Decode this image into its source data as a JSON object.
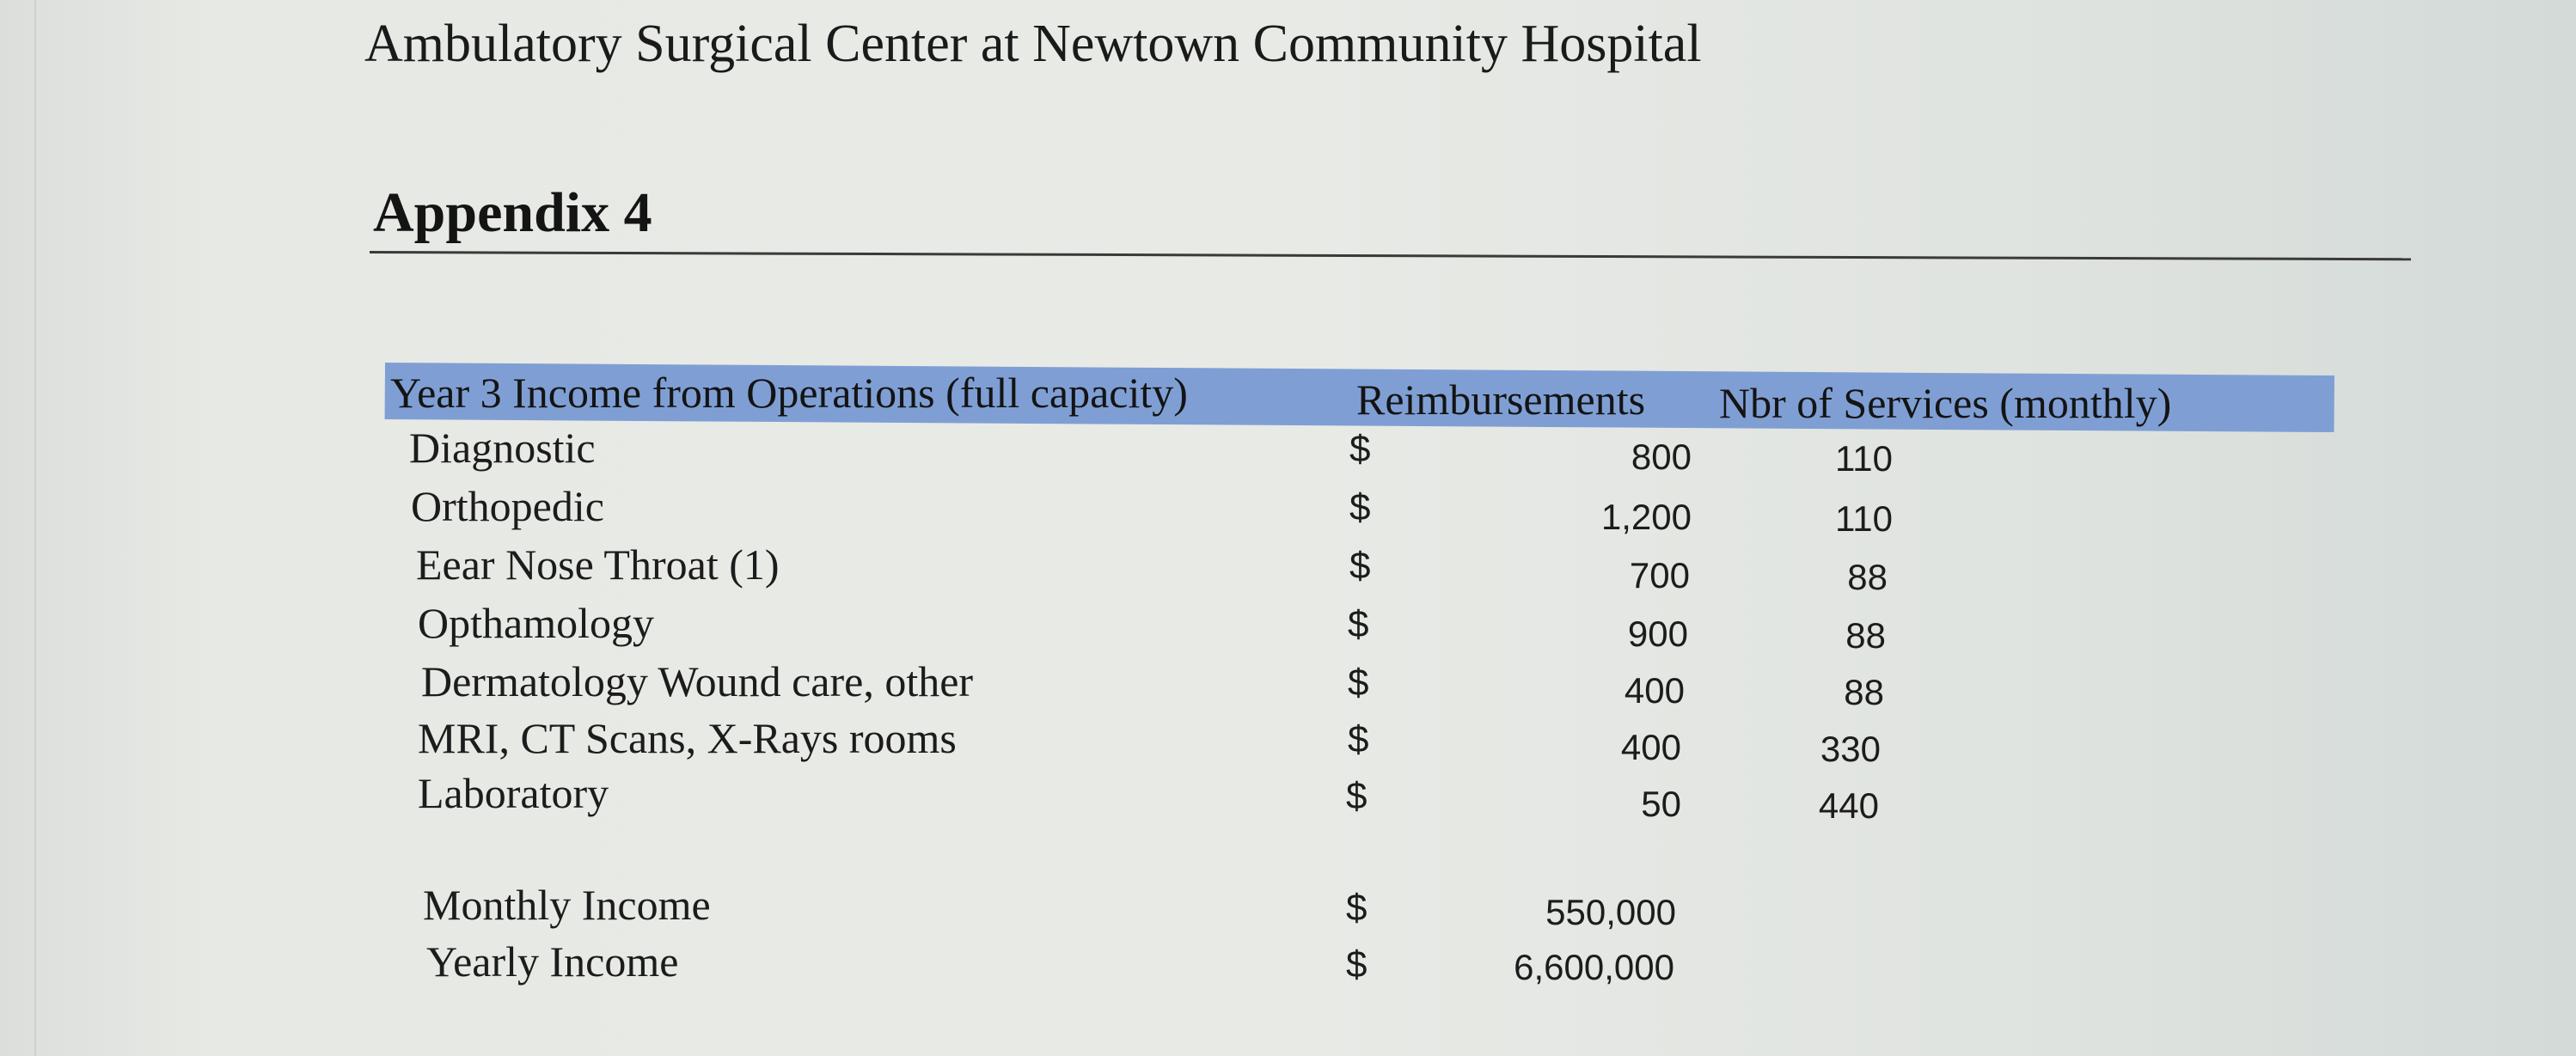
{
  "document": {
    "title": "Ambulatory Surgical Center at Newtown Community Hospital",
    "appendix": "Appendix 4"
  },
  "table": {
    "headers": {
      "category": "Year 3 Income from Operations (full capacity)",
      "reimbursements": "Reimbursements",
      "services": "Nbr of Services (monthly)"
    },
    "currency_symbol": "$",
    "rows": [
      {
        "label": "Diagnostic",
        "reimbursement": "800",
        "services": "110"
      },
      {
        "label": "Orthopedic",
        "reimbursement": "1,200",
        "services": "110"
      },
      {
        "label": "Eear Nose Throat (1)",
        "reimbursement": "700",
        "services": "88"
      },
      {
        "label": "Opthamology",
        "reimbursement": "900",
        "services": "88"
      },
      {
        "label": "Dermatology  Wound care, other",
        "reimbursement": "400",
        "services": "88"
      },
      {
        "label": "MRI, CT Scans, X-Rays rooms",
        "reimbursement": "400",
        "services": "330"
      },
      {
        "label": "Laboratory",
        "reimbursement": "50",
        "services": "440"
      }
    ],
    "totals": [
      {
        "label": "Monthly Income",
        "value": "550,000"
      },
      {
        "label": "Yearly Income",
        "value": "6,600,000"
      }
    ]
  }
}
